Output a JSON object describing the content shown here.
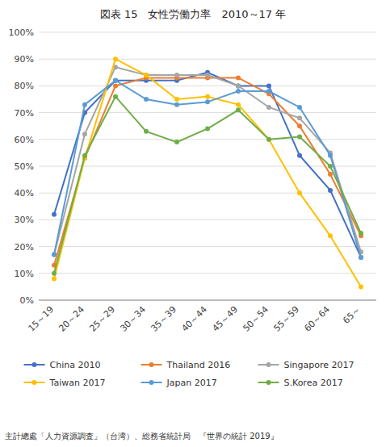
{
  "chart_data": {
    "type": "line",
    "title": "図表 15　女性労働力率　2010～17 年",
    "annotations": [
      "主計總處「人力資源調査」（台湾）、総務省統計局　『世界の統計 2019』"
    ],
    "categories": [
      "15～19",
      "20～24",
      "25～29",
      "30～34",
      "35～39",
      "40～44",
      "45～49",
      "50～54",
      "55～59",
      "60～64",
      "65～"
    ],
    "series": [
      {
        "name": "China 2010",
        "color": "#4472C4",
        "marker": "circle",
        "values": [
          32,
          70,
          82,
          82,
          82,
          85,
          80,
          80,
          54,
          41,
          16
        ]
      },
      {
        "name": "Thailand 2016",
        "color": "#ED7D31",
        "marker": "circle",
        "values": [
          13,
          53,
          80,
          83,
          83,
          83,
          83,
          77,
          65,
          47,
          24
        ]
      },
      {
        "name": "Singapore 2017",
        "color": "#A5A5A5",
        "marker": "circle",
        "values": [
          17,
          62,
          87,
          84,
          84,
          84,
          80,
          72,
          68,
          55,
          18
        ]
      },
      {
        "name": "Taiwan 2017",
        "color": "#FFC000",
        "marker": "circle",
        "values": [
          8,
          53,
          90,
          84,
          75,
          76,
          73,
          60,
          40,
          24,
          5
        ]
      },
      {
        "name": "Japan 2017",
        "color": "#5B9BD5",
        "marker": "circle",
        "values": [
          17,
          73,
          82,
          75,
          73,
          74,
          78,
          78,
          72,
          54,
          16
        ]
      },
      {
        "name": "S.Korea 2017",
        "color": "#70AD47",
        "marker": "circle",
        "values": [
          10,
          54,
          76,
          63,
          59,
          64,
          71,
          60,
          61,
          50,
          25
        ]
      }
    ],
    "ylim": [
      0,
      100
    ],
    "yticks": [
      {
        "value": 0,
        "label": "0%"
      },
      {
        "value": 10,
        "label": "10%"
      },
      {
        "value": 20,
        "label": "20%"
      },
      {
        "value": 30,
        "label": "30%"
      },
      {
        "value": 40,
        "label": "40%"
      },
      {
        "value": 50,
        "label": "50%"
      },
      {
        "value": 60,
        "label": "60%"
      },
      {
        "value": 70,
        "label": "70%"
      },
      {
        "value": 80,
        "label": "80%"
      },
      {
        "value": 90,
        "label": "90%"
      },
      {
        "value": 100,
        "label": "100%"
      }
    ],
    "grid": true,
    "legend": "bottom"
  }
}
